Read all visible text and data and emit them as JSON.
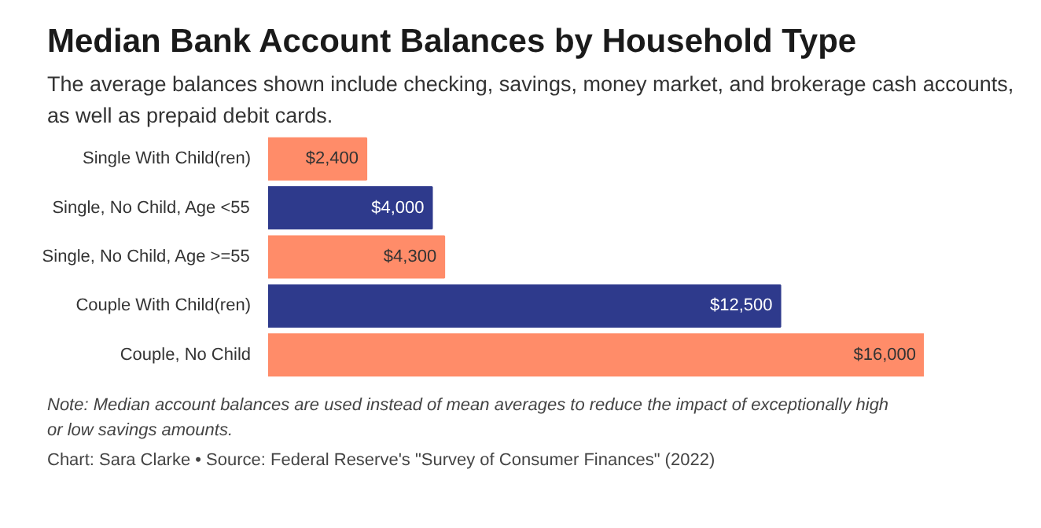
{
  "chart_data": {
    "type": "bar",
    "orientation": "horizontal",
    "title": "Median Bank Account Balances by Household Type",
    "subtitle": "The average balances shown include checking, savings, money market, and brokerage cash accounts, as well as prepaid debit cards.",
    "categories": [
      "Single With Child(ren)",
      "Single, No Child, Age <55",
      "Single, No Child, Age >=55",
      "Couple With Child(ren)",
      "Couple, No Child"
    ],
    "values": [
      2400,
      4000,
      4300,
      12500,
      16000
    ],
    "value_labels": [
      "$2,400",
      "$4,000",
      "$4,300",
      "$12,500",
      "$16,000"
    ],
    "colors": [
      "#ff8c69",
      "#2e3a8c",
      "#ff8c69",
      "#2e3a8c",
      "#ff8c69"
    ],
    "annotations": [
      "Note: Median account balances are used instead of mean averages to reduce the impact of exceptionally high or low savings amounts.",
      "Chart: Sara Clarke • Source: Federal Reserve's \"Survey of Consumer Finances\" (2022)"
    ],
    "grid": false
  }
}
